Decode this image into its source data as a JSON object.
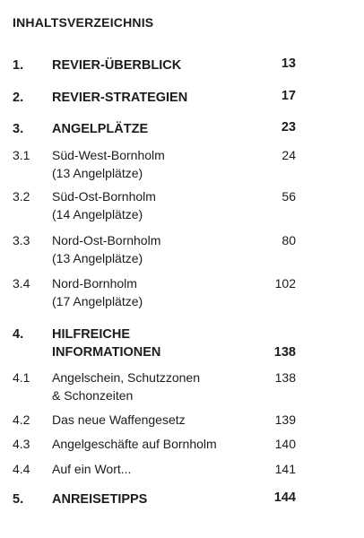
{
  "toc": {
    "title": "INHALTSVERZEICHNIS",
    "entries": [
      {
        "num": "1.",
        "lines": [
          "REVIER-ÜBERBLICK"
        ],
        "page": "13"
      },
      {
        "num": "2.",
        "lines": [
          "REVIER-STRATEGIEN"
        ],
        "page": "17"
      },
      {
        "num": "3.",
        "lines": [
          "ANGELPLÄTZE"
        ],
        "page": "23"
      },
      {
        "num": "3.1",
        "lines": [
          "Süd-West-Bornholm",
          "(13 Angelplätze)"
        ],
        "page": "24"
      },
      {
        "num": "3.2",
        "lines": [
          "Süd-Ost-Bornholm",
          "(14 Angelplätze)"
        ],
        "page": "56"
      },
      {
        "num": "3.3",
        "lines": [
          "Nord-Ost-Bornholm",
          "(13 Angelplätze)"
        ],
        "page": "80"
      },
      {
        "num": "3.4",
        "lines": [
          "Nord-Bornholm",
          "(17 Angelplätze)"
        ],
        "page": "102"
      },
      {
        "num": "4.",
        "lines": [
          "HILFREICHE",
          "INFORMATIONEN"
        ],
        "page": "138"
      },
      {
        "num": "4.1",
        "lines": [
          "Angelschein, Schutzzonen",
          "& Schonzeiten"
        ],
        "page": "138"
      },
      {
        "num": "4.2",
        "lines": [
          "Das neue Waffengesetz"
        ],
        "page": "139"
      },
      {
        "num": "4.3",
        "lines": [
          "Angelgeschäfte auf Bornholm"
        ],
        "page": "140"
      },
      {
        "num": "4.4",
        "lines": [
          "Auf ein Wort..."
        ],
        "page": "141"
      },
      {
        "num": "5.",
        "lines": [
          "ANREISETIPPS"
        ],
        "page": "144"
      }
    ]
  }
}
